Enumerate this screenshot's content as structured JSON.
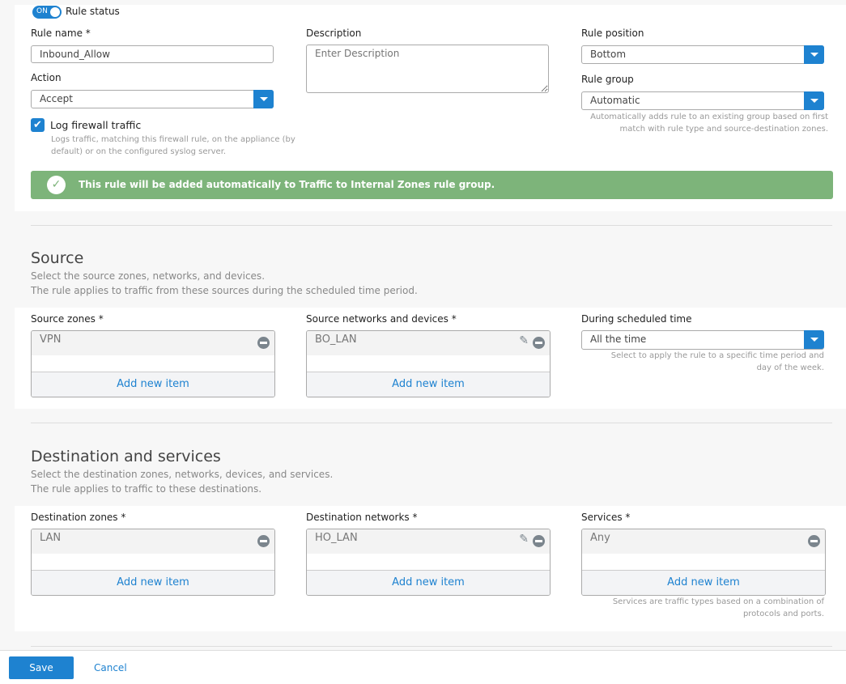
{
  "rule": {
    "status_toggle": "ON",
    "status_label": "Rule status",
    "name_label": "Rule name *",
    "name_value": "Inbound_Allow",
    "action_label": "Action",
    "action_value": "Accept",
    "log_label": "Log firewall traffic",
    "log_checked": true,
    "log_help_1": "Logs traffic, matching this firewall rule, on the appliance (by",
    "log_help_2": "default) or on the configured syslog server.",
    "description_label": "Description",
    "description_placeholder": "Enter Description",
    "position_label": "Rule position",
    "position_value": "Bottom",
    "group_label": "Rule group",
    "group_value": "Automatic",
    "group_help_1": "Automatically adds rule to an existing group based on first",
    "group_help_2": "match with rule type and source-destination zones.",
    "banner": "This rule will be added automatically to Traffic to Internal Zones rule group.",
    "banner_color": "#7db47a",
    "accent": "#1e82d0"
  },
  "source": {
    "title": "Source",
    "desc_1": "Select the source zones, networks, and devices.",
    "desc_2": "The rule applies to traffic from these sources during the scheduled time period.",
    "zones_label": "Source zones *",
    "zones": [
      "VPN"
    ],
    "networks_label": "Source networks and devices *",
    "networks": [
      "BO_LAN"
    ],
    "schedule_label": "During scheduled time",
    "schedule_value": "All the time",
    "schedule_help_1": "Select to apply the rule to a specific time period and",
    "schedule_help_2": "day of the week.",
    "add_label": "Add new item"
  },
  "destination": {
    "title": "Destination and services",
    "desc_1": "Select the destination zones, networks, devices, and services.",
    "desc_2": "The rule applies to traffic to these destinations.",
    "zones_label": "Destination zones *",
    "zones": [
      "LAN"
    ],
    "networks_label": "Destination networks *",
    "networks": [
      "HO_LAN"
    ],
    "services_label": "Services *",
    "services": [
      "Any"
    ],
    "services_help_1": "Services are traffic types based on a combination of",
    "services_help_2": "protocols and ports.",
    "add_label": "Add new item"
  },
  "footer": {
    "save": "Save",
    "cancel": "Cancel"
  }
}
